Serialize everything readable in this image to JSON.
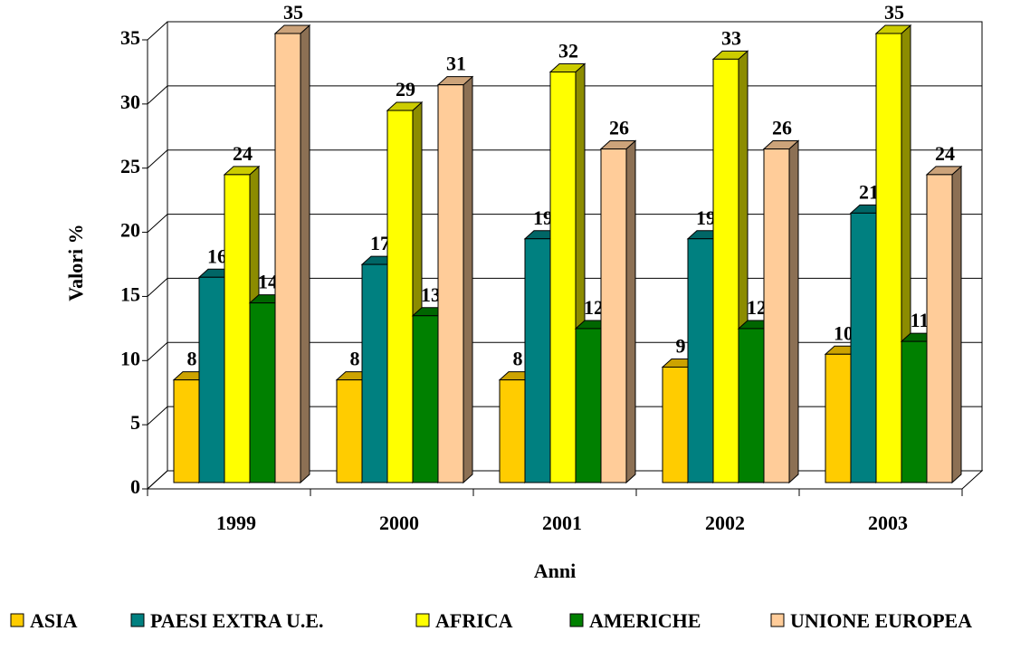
{
  "chart_data": {
    "type": "bar3d",
    "categories": [
      "1999",
      "2000",
      "2001",
      "2002",
      "2003"
    ],
    "series": [
      {
        "name": "ASIA",
        "color": "#FFCC00",
        "values": [
          8,
          8,
          8,
          9,
          10
        ]
      },
      {
        "name": "PAESI EXTRA U.E.",
        "color": "#008080",
        "values": [
          16,
          17,
          19,
          19,
          21
        ]
      },
      {
        "name": "AFRICA",
        "color": "#FFFF00",
        "values": [
          24,
          29,
          32,
          33,
          35
        ]
      },
      {
        "name": "AMERICHE",
        "color": "#008000",
        "values": [
          14,
          13,
          12,
          12,
          11
        ]
      },
      {
        "name": "UNIONE EUROPEA",
        "color": "#FFCC99",
        "values": [
          35,
          31,
          26,
          26,
          24
        ]
      }
    ],
    "ylim": [
      0,
      35
    ],
    "yticks": [
      0,
      5,
      10,
      15,
      20,
      25,
      30,
      35
    ],
    "grid": true,
    "ylabel": "Valori %",
    "xlabel": "Anni",
    "legend": "bottom"
  }
}
